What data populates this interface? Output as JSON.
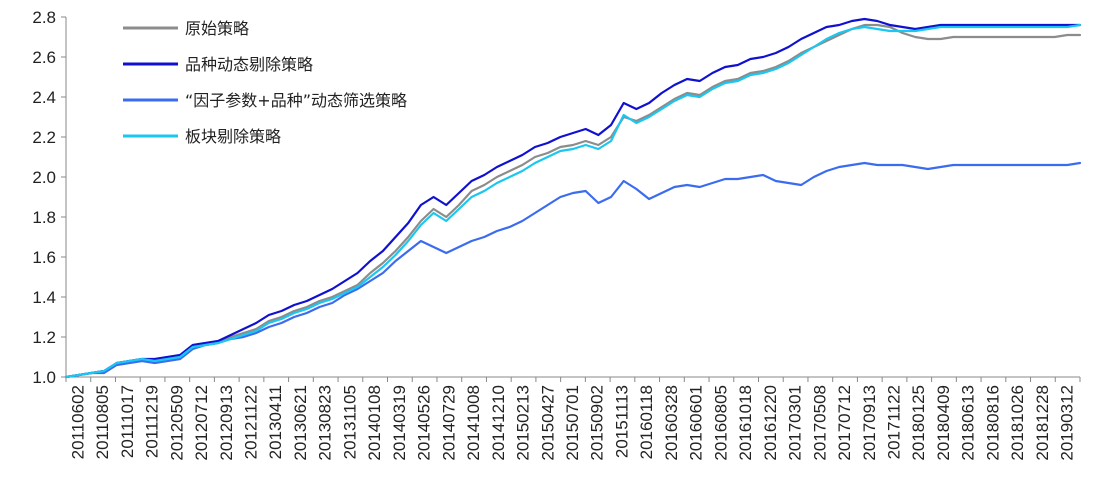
{
  "chart_data": {
    "type": "line",
    "title": "",
    "xlabel": "",
    "ylabel": "",
    "ylim": [
      1.0,
      2.8
    ],
    "yticks": [
      1.0,
      1.2,
      1.4,
      1.6,
      1.8,
      2.0,
      2.2,
      2.4,
      2.6,
      2.8
    ],
    "ytick_labels": [
      "1.0",
      "1.2",
      "1.4",
      "1.6",
      "1.8",
      "2.0",
      "2.2",
      "2.4",
      "2.6",
      "2.8"
    ],
    "x_tick_labels": [
      "20110602",
      "20110805",
      "20111017",
      "20111219",
      "20120509",
      "20120712",
      "20120913",
      "20121122",
      "20130411",
      "20130621",
      "20130823",
      "20131105",
      "20140108",
      "20140319",
      "20140526",
      "20140729",
      "20141008",
      "20141210",
      "20150213",
      "20150427",
      "20150701",
      "20150902",
      "20151113",
      "20160118",
      "20160328",
      "20160601",
      "20160805",
      "20161018",
      "20161220",
      "20170301",
      "20170508",
      "20170712",
      "20170913",
      "20171122",
      "20180125",
      "20180409",
      "20180613",
      "20180816",
      "20181026",
      "20181228",
      "20190312"
    ],
    "grid": false,
    "legend_position": "top-left",
    "x": [
      0,
      1,
      2,
      3,
      4,
      5,
      6,
      7,
      8,
      9,
      10,
      11,
      12,
      13,
      14,
      15,
      16,
      17,
      18,
      19,
      20,
      21,
      22,
      23,
      24,
      25,
      26,
      27,
      28,
      29,
      30,
      31,
      32,
      33,
      34,
      35,
      36,
      37,
      38,
      39,
      40,
      41,
      42,
      43,
      44,
      45,
      46,
      47,
      48,
      49,
      50,
      51,
      52,
      53,
      54,
      55,
      56,
      57,
      58,
      59,
      60,
      61,
      62,
      63,
      64,
      65,
      66,
      67,
      68,
      69,
      70,
      71,
      72,
      73,
      74,
      75,
      76,
      77,
      78,
      79,
      80
    ],
    "series": [
      {
        "name": "原始策略",
        "color": "#8c8c8c",
        "values": [
          1.0,
          1.01,
          1.02,
          1.03,
          1.07,
          1.08,
          1.09,
          1.08,
          1.09,
          1.1,
          1.15,
          1.16,
          1.17,
          1.2,
          1.22,
          1.24,
          1.28,
          1.3,
          1.33,
          1.35,
          1.38,
          1.4,
          1.43,
          1.46,
          1.52,
          1.57,
          1.63,
          1.7,
          1.78,
          1.84,
          1.8,
          1.86,
          1.93,
          1.96,
          2.0,
          2.03,
          2.06,
          2.1,
          2.12,
          2.15,
          2.16,
          2.18,
          2.16,
          2.2,
          2.3,
          2.28,
          2.31,
          2.35,
          2.39,
          2.42,
          2.41,
          2.45,
          2.48,
          2.49,
          2.52,
          2.53,
          2.55,
          2.58,
          2.62,
          2.65,
          2.68,
          2.71,
          2.74,
          2.76,
          2.76,
          2.75,
          2.72,
          2.7,
          2.69,
          2.69,
          2.7,
          2.7,
          2.7,
          2.7,
          2.7,
          2.7,
          2.7,
          2.7,
          2.7,
          2.71,
          2.71
        ]
      },
      {
        "name": "品种动态剔除策略",
        "color": "#1010d0",
        "values": [
          1.0,
          1.01,
          1.02,
          1.03,
          1.07,
          1.08,
          1.09,
          1.09,
          1.1,
          1.11,
          1.16,
          1.17,
          1.18,
          1.21,
          1.24,
          1.27,
          1.31,
          1.33,
          1.36,
          1.38,
          1.41,
          1.44,
          1.48,
          1.52,
          1.58,
          1.63,
          1.7,
          1.77,
          1.86,
          1.9,
          1.86,
          1.92,
          1.98,
          2.01,
          2.05,
          2.08,
          2.11,
          2.15,
          2.17,
          2.2,
          2.22,
          2.24,
          2.21,
          2.26,
          2.37,
          2.34,
          2.37,
          2.42,
          2.46,
          2.49,
          2.48,
          2.52,
          2.55,
          2.56,
          2.59,
          2.6,
          2.62,
          2.65,
          2.69,
          2.72,
          2.75,
          2.76,
          2.78,
          2.79,
          2.78,
          2.76,
          2.75,
          2.74,
          2.75,
          2.76,
          2.76,
          2.76,
          2.76,
          2.76,
          2.76,
          2.76,
          2.76,
          2.76,
          2.76,
          2.76,
          2.76
        ]
      },
      {
        "name": "“因子参数+品种”动态筛选策略",
        "color": "#3b6cf0",
        "values": [
          1.0,
          1.01,
          1.02,
          1.02,
          1.06,
          1.07,
          1.08,
          1.07,
          1.08,
          1.09,
          1.14,
          1.16,
          1.17,
          1.19,
          1.2,
          1.22,
          1.25,
          1.27,
          1.3,
          1.32,
          1.35,
          1.37,
          1.41,
          1.44,
          1.48,
          1.52,
          1.58,
          1.63,
          1.68,
          1.65,
          1.62,
          1.65,
          1.68,
          1.7,
          1.73,
          1.75,
          1.78,
          1.82,
          1.86,
          1.9,
          1.92,
          1.93,
          1.87,
          1.9,
          1.98,
          1.94,
          1.89,
          1.92,
          1.95,
          1.96,
          1.95,
          1.97,
          1.99,
          1.99,
          2.0,
          2.01,
          1.98,
          1.97,
          1.96,
          2.0,
          2.03,
          2.05,
          2.06,
          2.07,
          2.06,
          2.06,
          2.06,
          2.05,
          2.04,
          2.05,
          2.06,
          2.06,
          2.06,
          2.06,
          2.06,
          2.06,
          2.06,
          2.06,
          2.06,
          2.06,
          2.07
        ]
      },
      {
        "name": "板块剔除策略",
        "color": "#19c7f0",
        "values": [
          1.0,
          1.01,
          1.02,
          1.03,
          1.07,
          1.08,
          1.09,
          1.08,
          1.09,
          1.1,
          1.15,
          1.16,
          1.17,
          1.19,
          1.21,
          1.23,
          1.27,
          1.29,
          1.32,
          1.34,
          1.37,
          1.39,
          1.42,
          1.45,
          1.5,
          1.55,
          1.61,
          1.68,
          1.76,
          1.82,
          1.78,
          1.84,
          1.9,
          1.93,
          1.97,
          2.0,
          2.03,
          2.07,
          2.1,
          2.13,
          2.14,
          2.16,
          2.14,
          2.18,
          2.31,
          2.27,
          2.3,
          2.34,
          2.38,
          2.41,
          2.4,
          2.44,
          2.47,
          2.48,
          2.51,
          2.52,
          2.54,
          2.57,
          2.61,
          2.65,
          2.69,
          2.72,
          2.74,
          2.75,
          2.74,
          2.73,
          2.73,
          2.73,
          2.74,
          2.75,
          2.75,
          2.75,
          2.75,
          2.75,
          2.75,
          2.75,
          2.75,
          2.75,
          2.75,
          2.75,
          2.76
        ]
      }
    ]
  }
}
